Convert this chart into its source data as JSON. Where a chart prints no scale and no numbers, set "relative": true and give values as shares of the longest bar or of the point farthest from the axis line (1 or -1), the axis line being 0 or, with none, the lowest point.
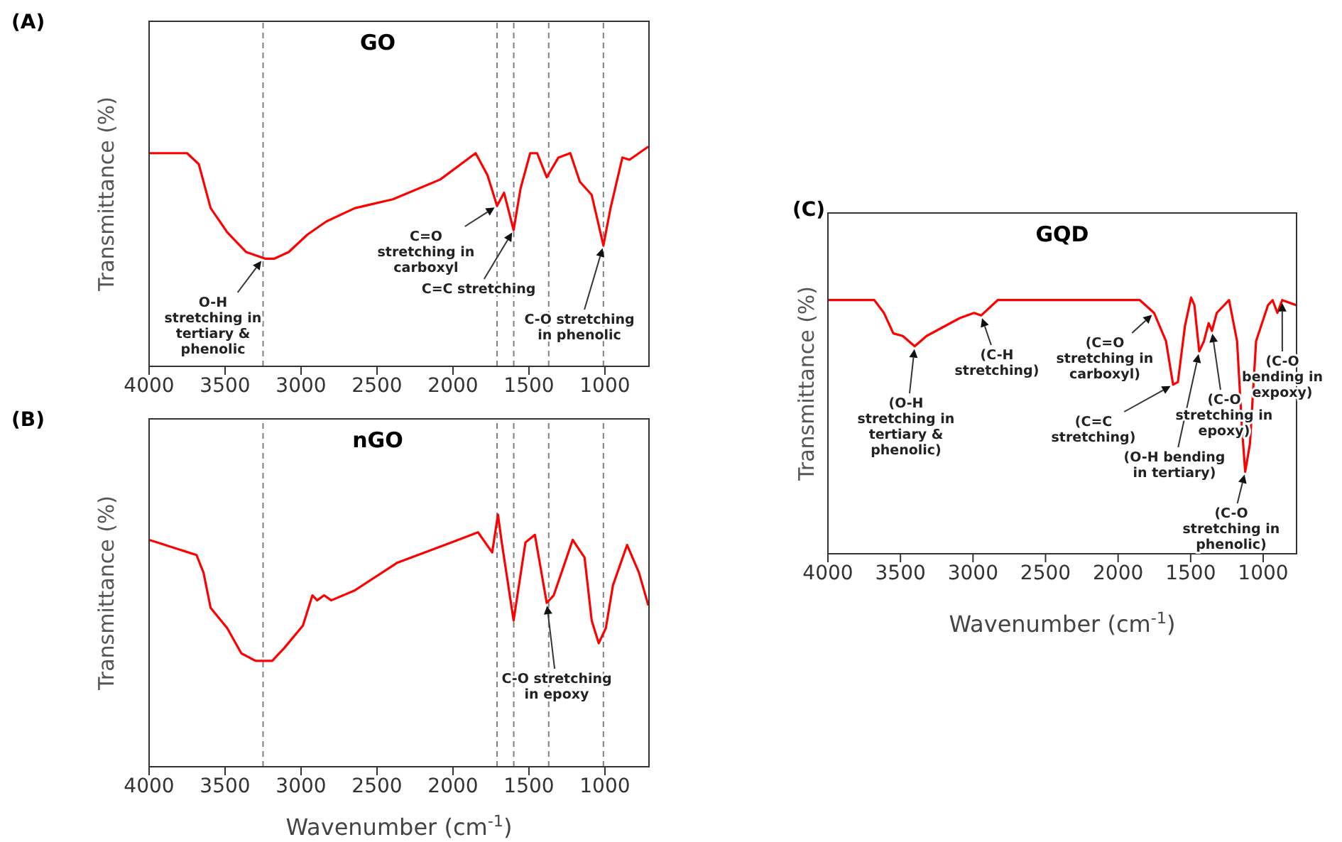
{
  "chart_data": [
    {
      "type": "line",
      "title": "(A)",
      "subtitle": "GO",
      "ylabel": "Transmittance (%)",
      "relative": true,
      "xlim": [
        4000,
        710
      ],
      "xticks": [
        4000,
        3500,
        3000,
        2500,
        2000,
        1500,
        1000
      ],
      "series": [
        {
          "color": "#ff0000",
          "x": [
            4000,
            3750,
            3673,
            3595,
            3486,
            3361,
            3237,
            3175,
            3081,
            2957,
            2832,
            2645,
            2396,
            2084,
            1851,
            1773,
            1710,
            1664,
            1601,
            1555,
            1492,
            1446,
            1383,
            1306,
            1228,
            1165,
            1087,
            1010,
            963,
            885,
            838,
            714
          ],
          "values": [
            0.97,
            0.97,
            0.92,
            0.72,
            0.61,
            0.52,
            0.49,
            0.49,
            0.52,
            0.6,
            0.66,
            0.72,
            0.76,
            0.85,
            0.97,
            0.87,
            0.73,
            0.79,
            0.62,
            0.81,
            0.97,
            0.97,
            0.86,
            0.95,
            0.97,
            0.84,
            0.78,
            0.55,
            0.72,
            0.95,
            0.94,
            1
          ]
        }
      ],
      "ref_lines": [
        {
          "axis": "x",
          "value": 3250,
          "color": "#808080",
          "line_style": "dashed"
        },
        {
          "axis": "x",
          "value": 1710,
          "color": "#808080",
          "line_style": "dashed"
        },
        {
          "axis": "x",
          "value": 1600,
          "color": "#808080",
          "line_style": "dashed"
        },
        {
          "axis": "x",
          "value": 1370,
          "color": "#808080",
          "line_style": "dashed"
        },
        {
          "axis": "x",
          "value": 1010,
          "color": "#808080",
          "line_style": "dashed"
        }
      ],
      "annotations": [
        {
          "text": "O-H\nstretching in\ntertiary &\nphenolic",
          "x": 3250,
          "y": 0.49
        },
        {
          "text": "C=O\nstretching in\ncarboxyl",
          "x": 1710,
          "y": 0.73
        },
        {
          "text": "C=C stretching",
          "x": 1601,
          "y": 0.62
        },
        {
          "text": "C-O stretching\nin phenolic",
          "x": 1010,
          "y": 0.55
        }
      ]
    },
    {
      "type": "line",
      "title": "(B)",
      "subtitle": "nGO",
      "ylabel": "Transmittance (%)",
      "xlabel": "Wavenumber (cm$^{-1}$)",
      "relative": true,
      "xlim": [
        4000,
        710
      ],
      "xticks": [
        4000,
        3500,
        3000,
        2500,
        2000,
        1500,
        1000
      ],
      "series": [
        {
          "color": "#ff0000",
          "x": [
            4000,
            3688,
            3642,
            3595,
            3486,
            3393,
            3299,
            3190,
            3112,
            2988,
            2925,
            2894,
            2848,
            2801,
            2645,
            2365,
            2053,
            1835,
            1742,
            1704,
            1679,
            1601,
            1523,
            1461,
            1383,
            1337,
            1212,
            1134,
            1087,
            1041,
            994,
            947,
            854,
            776,
            714
          ],
          "values": [
            0.9,
            0.84,
            0.77,
            0.63,
            0.55,
            0.45,
            0.42,
            0.42,
            0.47,
            0.56,
            0.68,
            0.66,
            0.68,
            0.66,
            0.7,
            0.81,
            0.88,
            0.93,
            0.85,
            1,
            0.89,
            0.58,
            0.89,
            0.92,
            0.65,
            0.68,
            0.9,
            0.83,
            0.58,
            0.49,
            0.55,
            0.72,
            0.88,
            0.77,
            0.64
          ]
        }
      ],
      "ref_lines": [
        {
          "axis": "x",
          "value": 3250,
          "color": "#808080",
          "line_style": "dashed"
        },
        {
          "axis": "x",
          "value": 1710,
          "color": "#808080",
          "line_style": "dashed"
        },
        {
          "axis": "x",
          "value": 1600,
          "color": "#808080",
          "line_style": "dashed"
        },
        {
          "axis": "x",
          "value": 1370,
          "color": "#808080",
          "line_style": "dashed"
        },
        {
          "axis": "x",
          "value": 1010,
          "color": "#808080",
          "line_style": "dashed"
        }
      ],
      "annotations": [
        {
          "text": "C-O stretching\nin epoxy",
          "x": 1383,
          "y": 0.65
        }
      ]
    },
    {
      "type": "line",
      "title": "(C)",
      "subtitle": "GQD",
      "ylabel": "Transmittance (%)",
      "xlabel": "Wavenumber (cm$^{-1}$)",
      "relative": true,
      "xlim": [
        4000,
        770
      ],
      "xticks": [
        4000,
        3500,
        3000,
        2500,
        2000,
        1500,
        1000
      ],
      "series": [
        {
          "color": "#ff0000",
          "x": [
            4000,
            3680,
            3614,
            3549,
            3484,
            3402,
            3320,
            3091,
            2993,
            2944,
            2830,
            1850,
            1752,
            1670,
            1621,
            1588,
            1539,
            1497,
            1474,
            1441,
            1408,
            1376,
            1353,
            1320,
            1235,
            1180,
            1147,
            1124,
            1091,
            1049,
            967,
            935,
            902,
            869,
            771
          ],
          "values": [
            0.99,
            0.99,
            0.94,
            0.86,
            0.85,
            0.81,
            0.85,
            0.92,
            0.94,
            0.93,
            0.99,
            0.99,
            0.94,
            0.83,
            0.66,
            0.67,
            0.89,
            1,
            0.97,
            0.79,
            0.83,
            0.9,
            0.87,
            0.94,
            0.99,
            0.83,
            0.5,
            0.32,
            0.43,
            0.83,
            0.97,
            0.99,
            0.94,
            0.99,
            0.97
          ]
        }
      ],
      "annotations": [
        {
          "text": "(O-H\nstretching in\ntertiary &\nphenolic)",
          "x": 3402,
          "y": 0.81
        },
        {
          "text": "(C-H\nstretching)",
          "x": 2944,
          "y": 0.93
        },
        {
          "text": "(C=O\nstretching in\ncarboxyl)",
          "x": 1752,
          "y": 0.94
        },
        {
          "text": "(C=C\nstretching)",
          "x": 1621,
          "y": 0.66
        },
        {
          "text": "(O-H bending\nin tertiary)",
          "x": 1441,
          "y": 0.79
        },
        {
          "text": "(C-O\nstretching in\nepoxy)",
          "x": 1353,
          "y": 0.87
        },
        {
          "text": "(C-O\nstretching in\nphenolic)",
          "x": 1124,
          "y": 0.32
        },
        {
          "text": "(C-O\nbending in\nexpoxy)",
          "x": 869,
          "y": 0.99
        }
      ]
    }
  ]
}
